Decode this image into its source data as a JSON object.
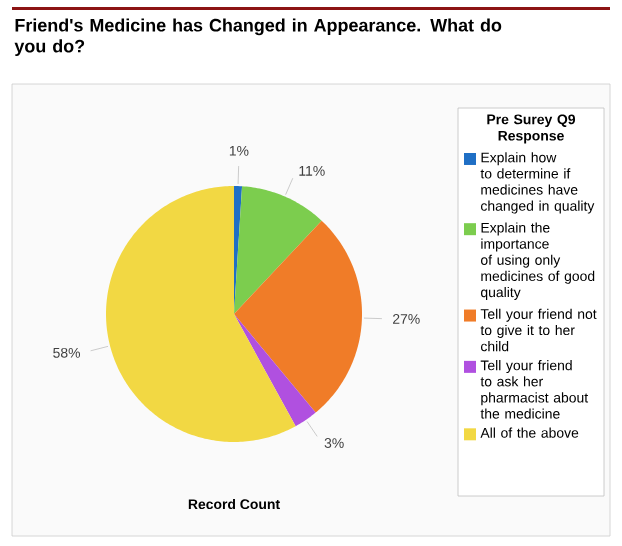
{
  "chart_data": {
    "type": "pie",
    "title": "Friend's Medicine has Changed in Appearance. What do you do?",
    "legend_title": "Pre Surey Q9 Response",
    "xlabel": "Record Count",
    "categories": [
      "Explain how to determine if medicines have changed in quality",
      "Explain the importance of using only medicines of good quality",
      "Tell your friend not to give it to her child",
      "Tell your friend to ask her pharmacist about the medicine",
      "All of the above"
    ],
    "values": [
      1,
      11,
      27,
      3,
      58
    ],
    "value_labels": [
      "1%",
      "11%",
      "27%",
      "3%",
      "58%"
    ],
    "colors": [
      "#1f6fc5",
      "#7ccd4e",
      "#f07c28",
      "#b050e0",
      "#f2d843"
    ],
    "legend": "right"
  }
}
